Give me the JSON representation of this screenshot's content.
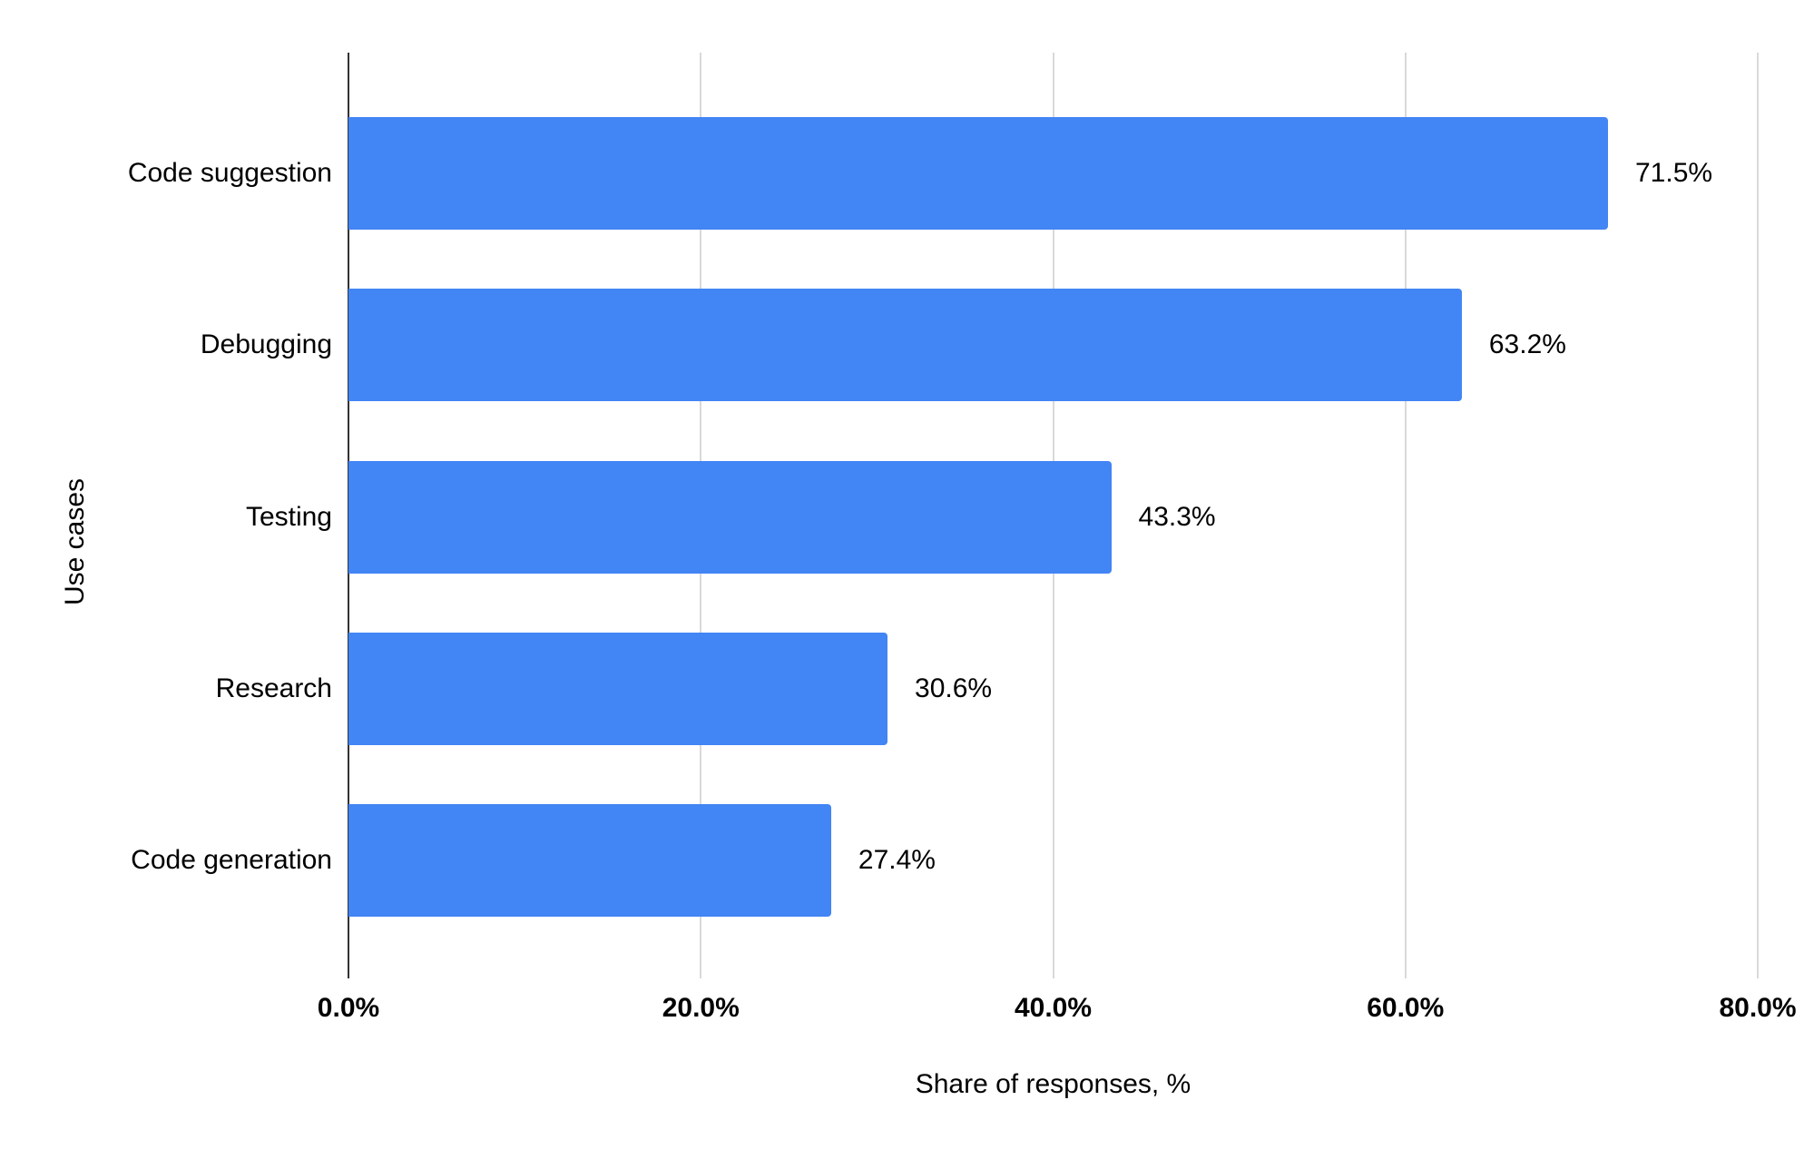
{
  "chart_data": {
    "type": "bar",
    "orientation": "horizontal",
    "title": "",
    "categories": [
      "Code suggestion",
      "Debugging",
      "Testing",
      "Research",
      "Code generation"
    ],
    "values": [
      71.5,
      63.2,
      43.3,
      30.6,
      27.4
    ],
    "value_labels": [
      "71.5%",
      "63.2%",
      "43.3%",
      "30.6%",
      "27.4%"
    ],
    "xlabel": "Share of responses, %",
    "ylabel": "Use cases",
    "xlim": [
      0,
      80
    ],
    "x_ticks": [
      {
        "value": 0,
        "label": "0.0%"
      },
      {
        "value": 20,
        "label": "20.0%"
      },
      {
        "value": 40,
        "label": "40.0%"
      },
      {
        "value": 60,
        "label": "60.0%"
      },
      {
        "value": 80,
        "label": "80.0%"
      }
    ],
    "grid": true,
    "legend_position": "none",
    "colors": {
      "bar": "#4285F4",
      "gridline": "#D9D9D9",
      "axis_line": "#333333",
      "text": "#000000",
      "background": "#FFFFFF"
    }
  }
}
